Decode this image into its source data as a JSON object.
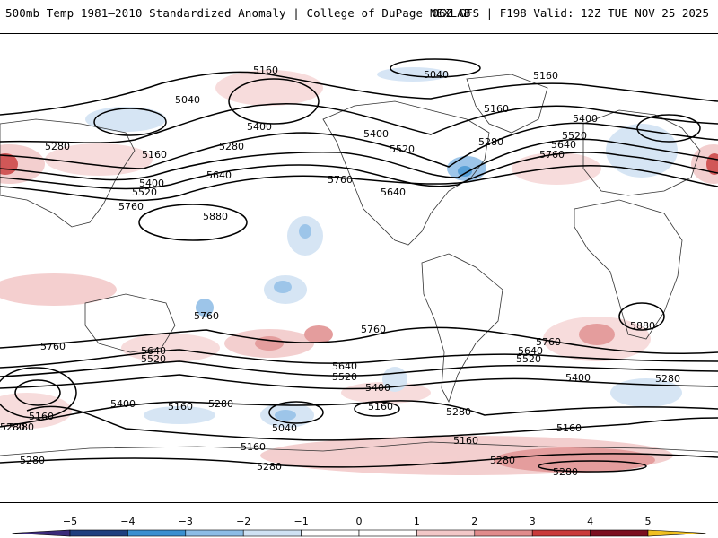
{
  "header": {
    "title_left": "500mb Temp 1981–2010 Standardized Anomaly | College of DuPage NEXLAB",
    "title_right": "06Z GFS | F198 Valid: 12Z TUE NOV 25 2025"
  },
  "colorbar": {
    "ticks": [
      -5,
      -4,
      -3,
      -2,
      -1,
      0,
      1,
      2,
      3,
      4,
      5
    ],
    "tick_labels": [
      "−5",
      "−4",
      "−3",
      "−2",
      "−1",
      "0",
      "1",
      "2",
      "3",
      "4",
      "5"
    ],
    "colors": [
      "#3b2a7a",
      "#1f3f7f",
      "#3a8fd0",
      "#8cbce6",
      "#cfe1f3",
      "#ffffff",
      "#ffffff",
      "#f2c7c7",
      "#e08c8c",
      "#c93a3a",
      "#7a1020",
      "#f0c020"
    ]
  },
  "contour_labels": [
    {
      "text": "5160"
    },
    {
      "text": "5040"
    },
    {
      "text": "5160"
    },
    {
      "text": "5040"
    },
    {
      "text": "5400"
    },
    {
      "text": "5160"
    },
    {
      "text": "5280"
    },
    {
      "text": "5280"
    },
    {
      "text": "5400"
    },
    {
      "text": "5520"
    },
    {
      "text": "5280"
    },
    {
      "text": "5520"
    },
    {
      "text": "5640"
    },
    {
      "text": "5760"
    },
    {
      "text": "5400"
    },
    {
      "text": "5160"
    },
    {
      "text": "5400"
    },
    {
      "text": "5520"
    },
    {
      "text": "5760"
    },
    {
      "text": "5640"
    },
    {
      "text": "5760"
    },
    {
      "text": "5640"
    },
    {
      "text": "5880"
    },
    {
      "text": "5760"
    },
    {
      "text": "5760"
    },
    {
      "text": "5880"
    },
    {
      "text": "5760"
    },
    {
      "text": "5640"
    },
    {
      "text": "5520"
    },
    {
      "text": "5760"
    },
    {
      "text": "5640"
    },
    {
      "text": "5520"
    },
    {
      "text": "5400"
    },
    {
      "text": "5640"
    },
    {
      "text": "5520"
    },
    {
      "text": "5400"
    },
    {
      "text": "5400"
    },
    {
      "text": "5280"
    },
    {
      "text": "5160"
    },
    {
      "text": "5280"
    },
    {
      "text": "5160"
    },
    {
      "text": "5040"
    },
    {
      "text": "5160"
    },
    {
      "text": "5280"
    },
    {
      "text": "5280"
    },
    {
      "text": "5160"
    },
    {
      "text": "5160"
    },
    {
      "text": "5280"
    },
    {
      "text": "5280"
    },
    {
      "text": "5280"
    },
    {
      "text": "5280"
    },
    {
      "text": "5160"
    },
    {
      "text": "5280"
    }
  ]
}
